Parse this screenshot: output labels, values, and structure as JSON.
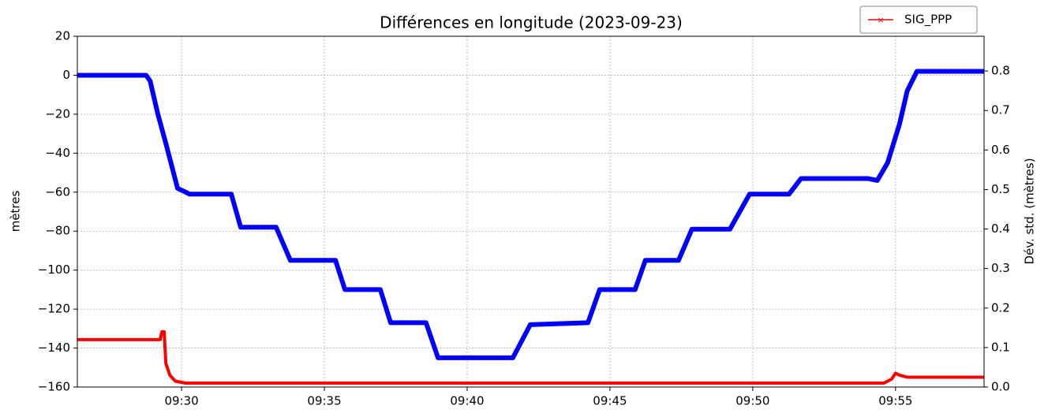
{
  "chart_data": {
    "type": "line",
    "title": "Différences en longitude (2023-09-23)",
    "y_label": "mètres",
    "y2_label": "Dév. std. (mètres)",
    "xlim": [
      566.35,
      598.1
    ],
    "xticks": [
      {
        "value": 570,
        "label": "09:30"
      },
      {
        "value": 575,
        "label": "09:35"
      },
      {
        "value": 580,
        "label": "09:40"
      },
      {
        "value": 585,
        "label": "09:45"
      },
      {
        "value": 590,
        "label": "09:50"
      },
      {
        "value": 595,
        "label": "09:55"
      }
    ],
    "ylim": [
      -160,
      20
    ],
    "yticks": [
      {
        "value": -160,
        "label": "−160"
      },
      {
        "value": -140,
        "label": "−140"
      },
      {
        "value": -120,
        "label": "−120"
      },
      {
        "value": -100,
        "label": "−100"
      },
      {
        "value": -80,
        "label": "−80"
      },
      {
        "value": -60,
        "label": "−60"
      },
      {
        "value": -40,
        "label": "−40"
      },
      {
        "value": -20,
        "label": "−20"
      },
      0,
      20
    ],
    "y2lim": [
      0,
      0.888
    ],
    "y2ticks": [
      {
        "value": 0,
        "label": "0.0"
      },
      0.1,
      0.2,
      0.3,
      0.4,
      0.5,
      0.6,
      0.7,
      0.8
    ],
    "grid": true,
    "legend": "upper right",
    "series": [
      {
        "color": "#0000ff",
        "x": [
          566.35,
          568.76,
          568.9,
          569.17,
          569.45,
          569.86,
          570.28,
          571.74,
          572.07,
          573.31,
          573.81,
          575.39,
          575.72,
          576.96,
          577.32,
          578.56,
          578.98,
          581.6,
          582.21,
          584.23,
          584.64,
          585.88,
          586.24,
          587.4,
          587.87,
          589.2,
          589.89,
          591.27,
          591.69,
          594.03,
          594.36,
          594.72,
          595.14,
          595.41,
          595.75,
          598.1
        ],
        "values": [
          0,
          0,
          -3,
          -20,
          -35,
          -58,
          -61,
          -61,
          -78,
          -78,
          -95,
          -95,
          -110,
          -110,
          -127,
          -127,
          -145,
          -145,
          -128,
          -127,
          -110,
          -110,
          -95,
          -95,
          -79,
          -79,
          -61,
          -61,
          -53,
          -53,
          -54,
          -45,
          -25,
          -8,
          2,
          2
        ]
      },
      {
        "name": "SIG_PPP",
        "color": "#ff0000",
        "axis": "y2",
        "x": [
          566.35,
          569.17,
          569.25,
          569.31,
          569.39,
          569.45,
          569.59,
          569.78,
          570.14,
          594.59,
          594.86,
          595.0,
          595.14,
          595.41,
          598.1
        ],
        "values": [
          0.12,
          0.12,
          0.12,
          0.14,
          0.14,
          0.06,
          0.03,
          0.015,
          0.01,
          0.01,
          0.02,
          0.035,
          0.03,
          0.025,
          0.025
        ]
      }
    ]
  }
}
